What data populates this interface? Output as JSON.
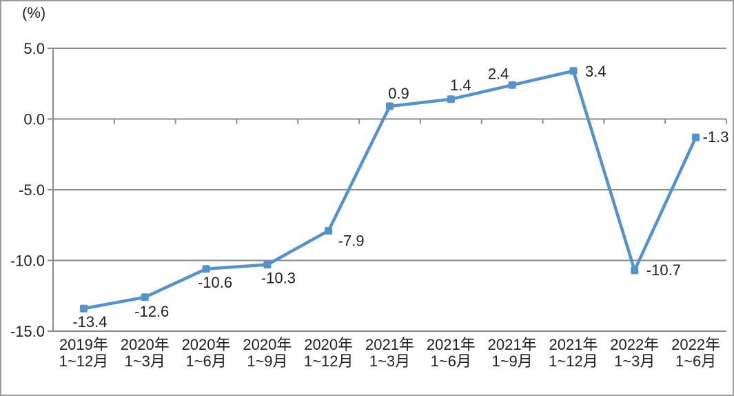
{
  "figure": {
    "unit_label": "(%)"
  },
  "chart_data": {
    "type": "line",
    "title": "",
    "unit_label": "(%)",
    "categories": [
      [
        "2019年",
        "1~12月"
      ],
      [
        "2020年",
        "1~3月"
      ],
      [
        "2020年",
        "1~6月"
      ],
      [
        "2020年",
        "1~9月"
      ],
      [
        "2020年",
        "1~12月"
      ],
      [
        "2021年",
        "1~3月"
      ],
      [
        "2021年",
        "1~6月"
      ],
      [
        "2021年",
        "1~9月"
      ],
      [
        "2021年",
        "1~12月"
      ],
      [
        "2022年",
        "1~3月"
      ],
      [
        "2022年",
        "1~6月"
      ]
    ],
    "values": [
      -13.4,
      -12.6,
      -10.6,
      -10.3,
      -7.9,
      0.9,
      1.4,
      2.4,
      3.4,
      -10.7,
      -1.3
    ],
    "data_labels": [
      "-13.4",
      "-12.6",
      "-10.6",
      "-10.3",
      "-7.9",
      "0.9",
      "1.4",
      "2.4",
      "3.4",
      "-10.7",
      "-1.3"
    ],
    "label_offsets": [
      [
        9,
        27,
        "middle"
      ],
      [
        10,
        28,
        "middle"
      ],
      [
        13,
        27,
        "middle"
      ],
      [
        16,
        27,
        "middle"
      ],
      [
        14,
        22,
        "start"
      ],
      [
        13,
        -11,
        "middle"
      ],
      [
        14,
        -13,
        "middle"
      ],
      [
        -20,
        -9,
        "middle"
      ],
      [
        17,
        8,
        "start"
      ],
      [
        17,
        7,
        "start"
      ],
      [
        10,
        7,
        "start"
      ]
    ],
    "ylim": [
      -15,
      5
    ],
    "ytick_values": [
      5,
      0,
      -5,
      -10,
      -15
    ],
    "ytick_labels": [
      "5.0",
      "0.0",
      "-5.0",
      "-10.0",
      "-15.0"
    ],
    "grid": true,
    "legend": "none",
    "marker": "square",
    "colors": {
      "series": "#5392CC",
      "grid": "#8a8a8a",
      "axis": "#8a8a8a",
      "text": "#1f1f1f",
      "border": "#9b9b9b",
      "background": "#ffffff"
    }
  }
}
